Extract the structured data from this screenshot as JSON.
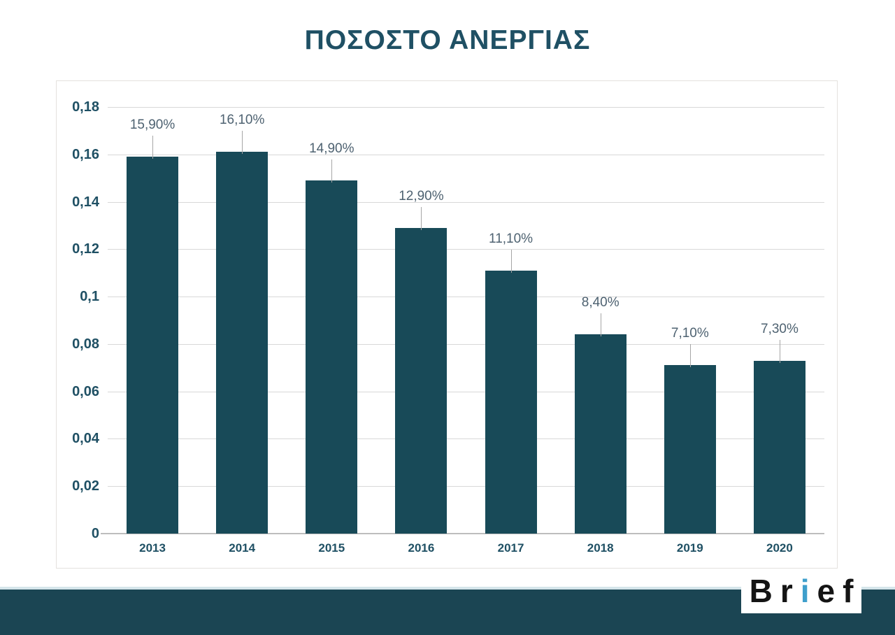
{
  "title": "ΠΟΣΟΣΤΟ ΑΝΕΡΓΙΑΣ",
  "chart_data": {
    "type": "bar",
    "title": "ΠΟΣΟΣΤΟ ΑΝΕΡΓΙΑΣ",
    "categories": [
      "2013",
      "2014",
      "2015",
      "2016",
      "2017",
      "2018",
      "2019",
      "2020"
    ],
    "values": [
      0.159,
      0.161,
      0.149,
      0.129,
      0.111,
      0.084,
      0.071,
      0.073
    ],
    "data_labels": [
      "15,90%",
      "16,10%",
      "14,90%",
      "12,90%",
      "11,10%",
      "8,40%",
      "7,10%",
      "7,30%"
    ],
    "yticks": [
      {
        "label": "0,18",
        "value": 0.18
      },
      {
        "label": "0,16",
        "value": 0.16
      },
      {
        "label": "0,14",
        "value": 0.14
      },
      {
        "label": "0,12",
        "value": 0.12
      },
      {
        "label": "0,1",
        "value": 0.1
      },
      {
        "label": "0,08",
        "value": 0.08
      },
      {
        "label": "0,06",
        "value": 0.06
      },
      {
        "label": "0,04",
        "value": 0.04
      },
      {
        "label": "0,02",
        "value": 0.02
      },
      {
        "label": "0",
        "value": 0.0
      }
    ],
    "xlabel": "",
    "ylabel": "",
    "ylim": [
      0,
      0.18
    ],
    "grid": true,
    "legend": "none",
    "decimal_separator": ","
  },
  "colors": {
    "bar": "#184a58",
    "accent": "#1f5064",
    "value_label": "#4e6271",
    "grid": "#d8d8d8",
    "axis": "#bdbdbd",
    "leader": "#a6a6a6",
    "footer_band": "#1b4553",
    "footer_accent_line": "#d5e5ea",
    "logo_i": "#3e9fcc"
  },
  "footer": {
    "logo": {
      "part1": "Br",
      "part2": "i",
      "part3": "ef",
      "full": "Brief"
    }
  }
}
